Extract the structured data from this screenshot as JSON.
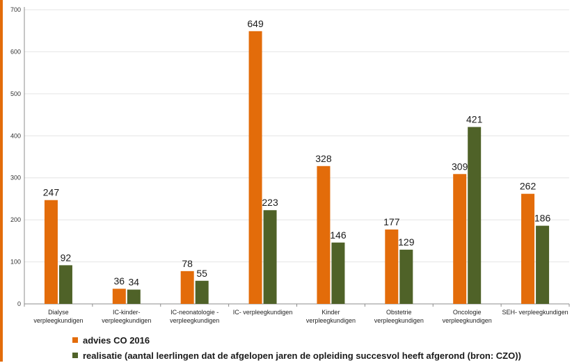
{
  "chart_data": {
    "type": "bar",
    "title": "",
    "xlabel": "",
    "ylabel": "",
    "ylim": [
      0,
      700
    ],
    "yticks": [
      0,
      100,
      200,
      300,
      400,
      500,
      600,
      700
    ],
    "grid": true,
    "legend_position": "bottom-left",
    "categories": [
      [
        "Dialyse",
        "verpleegkundigen"
      ],
      [
        "IC-kinder-",
        "verpleegkundigen"
      ],
      [
        "IC-neonatologie -",
        "verpleegkundigen"
      ],
      [
        "IC- verpleegkundigen"
      ],
      [
        "Kinder",
        "verpleegkundigen"
      ],
      [
        "Obstetrie",
        "verpleegkundigen"
      ],
      [
        "Oncologie",
        "verpleegkundigen"
      ],
      [
        "SEH- verpleegkundigen"
      ]
    ],
    "series": [
      {
        "name": "advies CO 2016",
        "color": "#E36C0A",
        "values": [
          247,
          36,
          78,
          649,
          328,
          177,
          309,
          262
        ]
      },
      {
        "name": "realisatie (aantal leerlingen dat de afgelopen jaren de opleiding succesvol heeft afgerond (bron: CZO))",
        "color": "#4F6228",
        "values": [
          92,
          34,
          55,
          223,
          146,
          129,
          421,
          186
        ]
      }
    ]
  },
  "colors": {
    "accent_stripe": "#E36C0A",
    "axis": "#8c8c8c",
    "grid": "#e4e4e4"
  }
}
